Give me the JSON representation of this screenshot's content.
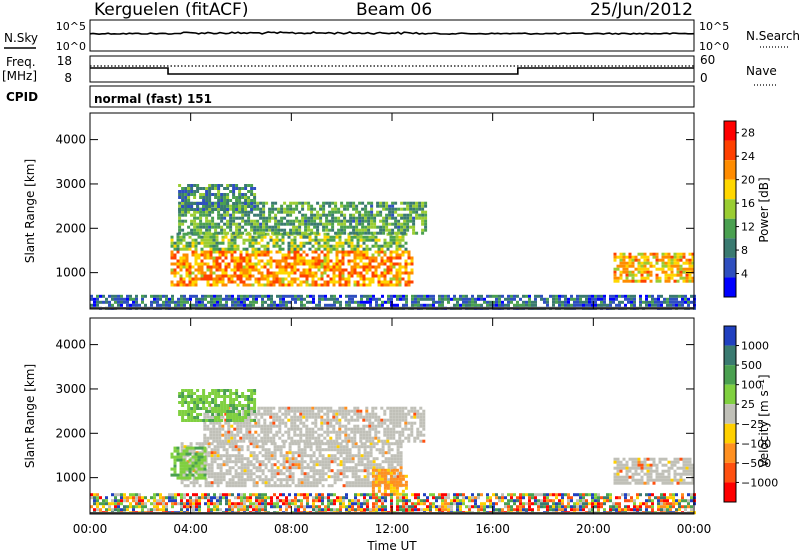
{
  "header": {
    "station": "Kerguelen (fitACF)",
    "beam": "Beam 06",
    "date": "25/Jun/2012"
  },
  "top_panels": {
    "nsky_label": "N.Sky",
    "nsky_ticks": [
      "10^5",
      "10^0"
    ],
    "nsky_right_ticks": [
      "10^5",
      "10^0"
    ],
    "nsearch_label": "N.Search",
    "freq_label_line1": "Freq.",
    "freq_label_line2": "[MHz]",
    "freq_ticks": [
      "18",
      "8"
    ],
    "nave_ticks": [
      "60",
      "0"
    ],
    "nave_label": "Nave",
    "cpid_label": "CPID",
    "cpid_value": "normal (fast) 151"
  },
  "chart_data": [
    {
      "type": "heatmap",
      "panel": "power",
      "xlabel": "Time UT",
      "ylabel": "Slant Range [km]",
      "x_ticks": [
        "00:00",
        "04:00",
        "08:00",
        "12:00",
        "16:00",
        "20:00",
        "00:00"
      ],
      "x_range_hours": [
        0,
        24
      ],
      "y_ticks": [
        1000,
        2000,
        3000,
        4000
      ],
      "ylim": [
        180,
        4600
      ],
      "colorbar_label": "Power [dB]",
      "colorbar_ticks": [
        4,
        8,
        12,
        16,
        20,
        24,
        28
      ],
      "colorbar_range": [
        0,
        30
      ],
      "colors": [
        "#0000ff",
        "#2f4fbf",
        "#3a7a70",
        "#4aa050",
        "#9acd32",
        "#ffd700",
        "#ff8c00",
        "#ff4000",
        "#ff0000"
      ],
      "regions": [
        {
          "t": [
            3.2,
            12.8
          ],
          "r": [
            700,
            1500
          ],
          "level": 22
        },
        {
          "t": [
            3.2,
            12.5
          ],
          "r": [
            1500,
            1900
          ],
          "level": 13
        },
        {
          "t": [
            3.5,
            13.3
          ],
          "r": [
            1900,
            2600
          ],
          "level": 11
        },
        {
          "t": [
            3.5,
            6.5
          ],
          "r": [
            2400,
            3000
          ],
          "level": 9
        },
        {
          "t": [
            20.8,
            24
          ],
          "r": [
            800,
            1450
          ],
          "level": 20
        },
        {
          "t": [
            0,
            24
          ],
          "r": [
            200,
            500
          ],
          "level": 6
        }
      ]
    },
    {
      "type": "heatmap",
      "panel": "velocity",
      "xlabel": "Time UT",
      "ylabel": "Slant Range [km]",
      "x_ticks": [
        "00:00",
        "04:00",
        "08:00",
        "12:00",
        "16:00",
        "20:00",
        "00:00"
      ],
      "x_range_hours": [
        0,
        24
      ],
      "y_ticks": [
        1000,
        2000,
        3000,
        4000
      ],
      "ylim": [
        180,
        4600
      ],
      "colorbar_label": "Velocity [m s⁻¹]",
      "colorbar_ticks": [
        "1000",
        "500",
        "100",
        "25",
        "−25",
        "−100",
        "−500",
        "−1000"
      ],
      "colors": [
        "#2040c0",
        "#3a7a70",
        "#4aa050",
        "#80d040",
        "#c0c0b8",
        "#ffd000",
        "#ff9020",
        "#ff5010",
        "#ff0000"
      ],
      "regions": [
        {
          "t": [
            3.6,
            12.4
          ],
          "r": [
            800,
            1800
          ],
          "level": "grey"
        },
        {
          "t": [
            3.2,
            4.6
          ],
          "r": [
            1000,
            1700
          ],
          "level": "green"
        },
        {
          "t": [
            11.2,
            12.6
          ],
          "r": [
            600,
            1200
          ],
          "level": "orange"
        },
        {
          "t": [
            4.5,
            13.3
          ],
          "r": [
            1800,
            2600
          ],
          "level": "grey"
        },
        {
          "t": [
            3.5,
            6.5
          ],
          "r": [
            2300,
            3000
          ],
          "level": "green"
        },
        {
          "t": [
            20.8,
            24
          ],
          "r": [
            900,
            1450
          ],
          "level": "grey"
        },
        {
          "t": [
            0,
            24
          ],
          "r": [
            200,
            650
          ],
          "level": "mixed"
        }
      ]
    }
  ]
}
